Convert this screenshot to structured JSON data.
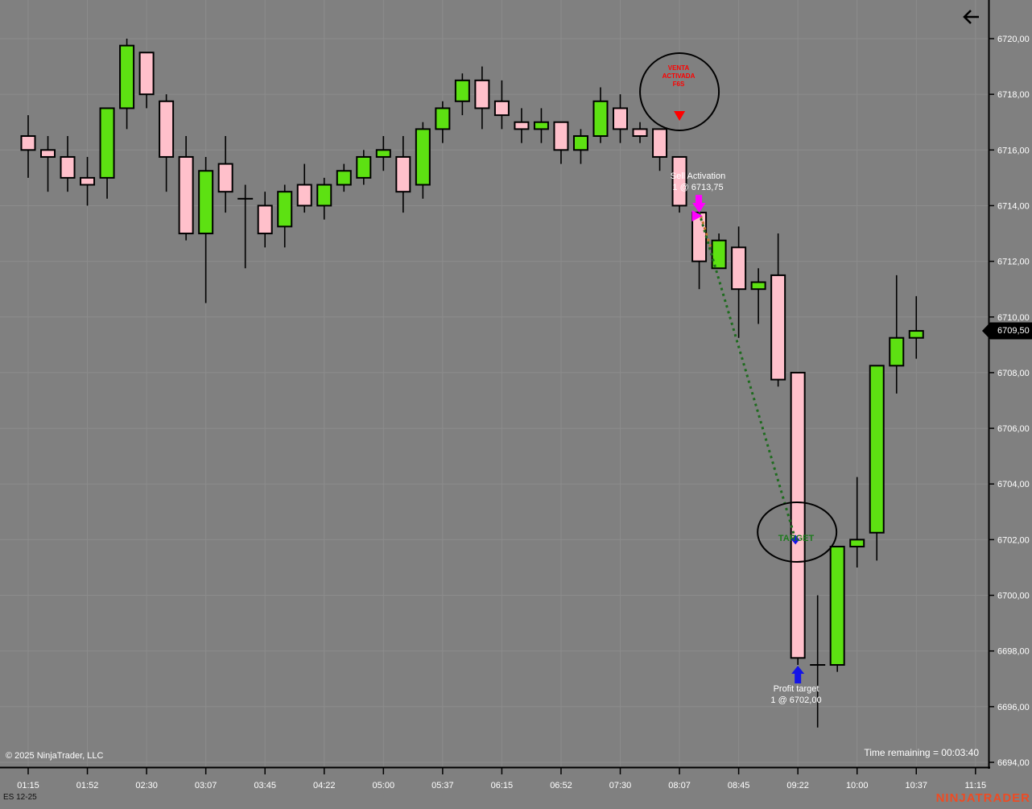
{
  "colors": {
    "background": "#808080",
    "grid": "#8c8c8c",
    "axis_line": "#000000",
    "axis_text": "#ffffff",
    "up_candle": "#5de112",
    "down_candle": "#ffc0cb",
    "candle_border": "#000000",
    "marker_bg": "#000000",
    "marker_text": "#ffffff",
    "brand": "#ee4b23",
    "annotation_red": "#ff0000",
    "annotation_green": "#1c7a1c",
    "trend_green": "#1e6b1e",
    "trend_orange": "#c07830",
    "magenta": "#ff00ff",
    "blue": "#1414e6"
  },
  "chart_data": {
    "type": "candlestick",
    "instrument": "ES 12-25",
    "price_axis": {
      "min": 6694,
      "max": 6720,
      "tick_step": 2,
      "decimal_separator": ","
    },
    "time_labels": [
      "01:15",
      "01:52",
      "02:30",
      "03:07",
      "03:45",
      "04:22",
      "05:00",
      "05:37",
      "06:15",
      "06:52",
      "07:30",
      "08:07",
      "08:45",
      "09:22",
      "10:00",
      "10:37",
      "11:15"
    ],
    "candles_per_label": 3,
    "last_price": 6709.5,
    "candles": [
      {
        "o": 6716.5,
        "h": 6717.25,
        "l": 6715.0,
        "c": 6716.0,
        "dir": "down"
      },
      {
        "o": 6716.0,
        "h": 6716.5,
        "l": 6714.5,
        "c": 6715.75,
        "dir": "down"
      },
      {
        "o": 6715.75,
        "h": 6716.5,
        "l": 6714.5,
        "c": 6715.0,
        "dir": "down"
      },
      {
        "o": 6715.0,
        "h": 6715.75,
        "l": 6714.0,
        "c": 6714.75,
        "dir": "down"
      },
      {
        "o": 6715.0,
        "h": 6717.5,
        "l": 6714.25,
        "c": 6717.5,
        "dir": "up"
      },
      {
        "o": 6717.5,
        "h": 6720.0,
        "l": 6716.75,
        "c": 6719.75,
        "dir": "up"
      },
      {
        "o": 6719.5,
        "h": 6719.5,
        "l": 6717.5,
        "c": 6718.0,
        "dir": "down"
      },
      {
        "o": 6717.75,
        "h": 6718.0,
        "l": 6714.5,
        "c": 6715.75,
        "dir": "down"
      },
      {
        "o": 6715.75,
        "h": 6716.5,
        "l": 6712.75,
        "c": 6713.0,
        "dir": "down"
      },
      {
        "o": 6713.0,
        "h": 6715.75,
        "l": 6710.5,
        "c": 6715.25,
        "dir": "up"
      },
      {
        "o": 6715.5,
        "h": 6716.5,
        "l": 6713.75,
        "c": 6714.5,
        "dir": "down"
      },
      {
        "o": 6714.25,
        "h": 6714.75,
        "l": 6711.75,
        "c": 6714.25,
        "dir": "doji"
      },
      {
        "o": 6714.0,
        "h": 6714.5,
        "l": 6712.5,
        "c": 6713.0,
        "dir": "down"
      },
      {
        "o": 6713.25,
        "h": 6714.75,
        "l": 6712.5,
        "c": 6714.5,
        "dir": "up"
      },
      {
        "o": 6714.75,
        "h": 6715.5,
        "l": 6713.75,
        "c": 6714.0,
        "dir": "down"
      },
      {
        "o": 6714.0,
        "h": 6715.0,
        "l": 6713.5,
        "c": 6714.75,
        "dir": "up"
      },
      {
        "o": 6714.75,
        "h": 6715.5,
        "l": 6714.5,
        "c": 6715.25,
        "dir": "up"
      },
      {
        "o": 6715.0,
        "h": 6716.0,
        "l": 6714.75,
        "c": 6715.75,
        "dir": "up"
      },
      {
        "o": 6715.75,
        "h": 6716.5,
        "l": 6715.25,
        "c": 6716.0,
        "dir": "up"
      },
      {
        "o": 6715.75,
        "h": 6716.5,
        "l": 6713.75,
        "c": 6714.5,
        "dir": "down"
      },
      {
        "o": 6714.75,
        "h": 6717.0,
        "l": 6714.25,
        "c": 6716.75,
        "dir": "up"
      },
      {
        "o": 6716.75,
        "h": 6717.75,
        "l": 6716.25,
        "c": 6717.5,
        "dir": "up"
      },
      {
        "o": 6717.75,
        "h": 6718.75,
        "l": 6717.25,
        "c": 6718.5,
        "dir": "up"
      },
      {
        "o": 6718.5,
        "h": 6719.0,
        "l": 6716.75,
        "c": 6717.5,
        "dir": "down"
      },
      {
        "o": 6717.75,
        "h": 6718.5,
        "l": 6716.75,
        "c": 6717.25,
        "dir": "down"
      },
      {
        "o": 6717.0,
        "h": 6717.5,
        "l": 6716.25,
        "c": 6716.75,
        "dir": "down"
      },
      {
        "o": 6716.75,
        "h": 6717.5,
        "l": 6716.25,
        "c": 6717.0,
        "dir": "up"
      },
      {
        "o": 6717.0,
        "h": 6717.0,
        "l": 6715.5,
        "c": 6716.0,
        "dir": "down"
      },
      {
        "o": 6716.0,
        "h": 6716.75,
        "l": 6715.5,
        "c": 6716.5,
        "dir": "up"
      },
      {
        "o": 6716.5,
        "h": 6718.25,
        "l": 6716.25,
        "c": 6717.75,
        "dir": "up"
      },
      {
        "o": 6717.5,
        "h": 6718.0,
        "l": 6716.25,
        "c": 6716.75,
        "dir": "down"
      },
      {
        "o": 6716.75,
        "h": 6717.0,
        "l": 6716.25,
        "c": 6716.5,
        "dir": "down"
      },
      {
        "o": 6716.75,
        "h": 6716.75,
        "l": 6715.25,
        "c": 6715.75,
        "dir": "down"
      },
      {
        "o": 6715.75,
        "h": 6715.75,
        "l": 6713.75,
        "c": 6714.0,
        "dir": "down"
      },
      {
        "o": 6713.75,
        "h": 6713.75,
        "l": 6711.0,
        "c": 6712.0,
        "dir": "down"
      },
      {
        "o": 6711.75,
        "h": 6713.0,
        "l": 6711.75,
        "c": 6712.75,
        "dir": "up"
      },
      {
        "o": 6712.5,
        "h": 6713.25,
        "l": 6709.25,
        "c": 6711.0,
        "dir": "down"
      },
      {
        "o": 6711.0,
        "h": 6711.75,
        "l": 6709.75,
        "c": 6711.25,
        "dir": "up"
      },
      {
        "o": 6711.5,
        "h": 6713.0,
        "l": 6707.5,
        "c": 6707.75,
        "dir": "down"
      },
      {
        "o": 6708.0,
        "h": 6708.0,
        "l": 6697.5,
        "c": 6697.75,
        "dir": "down"
      },
      {
        "o": 6697.5,
        "h": 6700.0,
        "l": 6695.25,
        "c": 6697.5,
        "dir": "doji"
      },
      {
        "o": 6697.5,
        "h": 6701.75,
        "l": 6697.25,
        "c": 6701.75,
        "dir": "up"
      },
      {
        "o": 6701.75,
        "h": 6704.25,
        "l": 6701.0,
        "c": 6702.0,
        "dir": "up"
      },
      {
        "o": 6702.25,
        "h": 6708.25,
        "l": 6701.25,
        "c": 6708.25,
        "dir": "up"
      },
      {
        "o": 6708.25,
        "h": 6711.5,
        "l": 6707.25,
        "c": 6709.25,
        "dir": "up"
      },
      {
        "o": 6709.25,
        "h": 6710.75,
        "l": 6708.5,
        "c": 6709.5,
        "dir": "up"
      }
    ]
  },
  "price_marker": {
    "label": "6709,50"
  },
  "annotations": {
    "entry_circle": {
      "text_lines": [
        "VENTA",
        "ACTIVADA",
        "F6S"
      ],
      "candle_index": 33
    },
    "entry_marker": {
      "text_lines": [
        "Sell Activation",
        "1 @ 6713,75"
      ],
      "price": 6713.75,
      "candle_index": 34
    },
    "target_circle": {
      "label": "TARGET",
      "candle_index": 39
    },
    "target_marker": {
      "text_lines": [
        "Profit target",
        "1 @ 6702,00"
      ],
      "price": 6702.0,
      "candle_index": 39
    }
  },
  "footer": {
    "copyright": "© 2025 NinjaTrader, LLC",
    "time_remaining": "Time remaining = 00:03:40",
    "instrument_tab": "ES 12-25",
    "brand": "NINJATRADER"
  }
}
